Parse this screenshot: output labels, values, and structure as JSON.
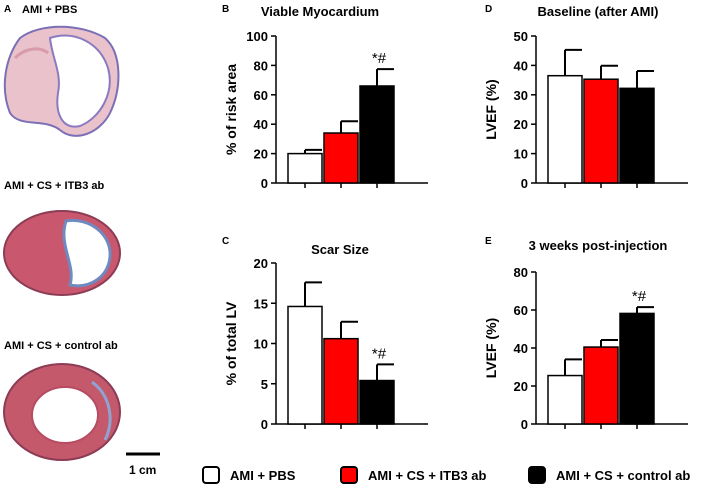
{
  "colors": {
    "pbs": "#ffffff",
    "itb3": "#ff0000",
    "control": "#000000",
    "axis": "#000000"
  },
  "panels": {
    "A": "A",
    "B": "B",
    "C": "C",
    "D": "D",
    "E": "E"
  },
  "histology": {
    "titles": [
      "AMI + PBS",
      "AMI + CS + ITB3 ab",
      "AMI + CS + control ab"
    ],
    "scale_bar": "1 cm"
  },
  "legend": [
    "AMI + PBS",
    "AMI + CS + ITB3 ab",
    "AMI + CS + control ab"
  ],
  "chart_data": [
    {
      "panel": "B",
      "type": "bar",
      "title": "Viable Myocardium",
      "ylabel": "% of risk area",
      "xlabel": "",
      "ylim": [
        0,
        100
      ],
      "yticks": [
        0,
        20,
        40,
        60,
        80,
        100
      ],
      "categories": [
        "AMI + PBS",
        "AMI + CS + ITB3 ab",
        "AMI + CS + control ab"
      ],
      "values": [
        20,
        34,
        66
      ],
      "errors": [
        2.5,
        8,
        11.5
      ],
      "annotation": "*#",
      "annotated_bar": 2
    },
    {
      "panel": "C",
      "type": "bar",
      "title": "Scar Size",
      "ylabel": "% of total LV",
      "xlabel": "",
      "ylim": [
        0,
        20
      ],
      "yticks": [
        0,
        5,
        10,
        15,
        20
      ],
      "categories": [
        "AMI + PBS",
        "AMI + CS + ITB3 ab",
        "AMI + CS + control ab"
      ],
      "values": [
        14.6,
        10.6,
        5.4
      ],
      "errors": [
        3,
        2.1,
        2
      ],
      "annotation": "*#",
      "annotated_bar": 2
    },
    {
      "panel": "D",
      "type": "bar",
      "title": "Baseline (after AMI)",
      "ylabel": "LVEF (%)",
      "xlabel": "",
      "ylim": [
        0,
        50
      ],
      "yticks": [
        0,
        10,
        20,
        30,
        40,
        50
      ],
      "categories": [
        "AMI + PBS",
        "AMI + CS + ITB3 ab",
        "AMI + CS + control ab"
      ],
      "values": [
        36.5,
        35.3,
        32.2
      ],
      "errors": [
        8.8,
        4.6,
        5.9
      ],
      "annotation": "",
      "annotated_bar": -1
    },
    {
      "panel": "E",
      "type": "bar",
      "title": "3 weeks post-injection",
      "ylabel": "LVEF (%)",
      "xlabel": "",
      "ylim": [
        0,
        80
      ],
      "yticks": [
        0,
        20,
        40,
        60,
        80
      ],
      "categories": [
        "AMI + PBS",
        "AMI + CS + ITB3 ab",
        "AMI + CS + control ab"
      ],
      "values": [
        25.5,
        40.5,
        58.2
      ],
      "errors": [
        8.5,
        3.7,
        3.3
      ],
      "annotation": "*#",
      "annotated_bar": 2
    }
  ]
}
